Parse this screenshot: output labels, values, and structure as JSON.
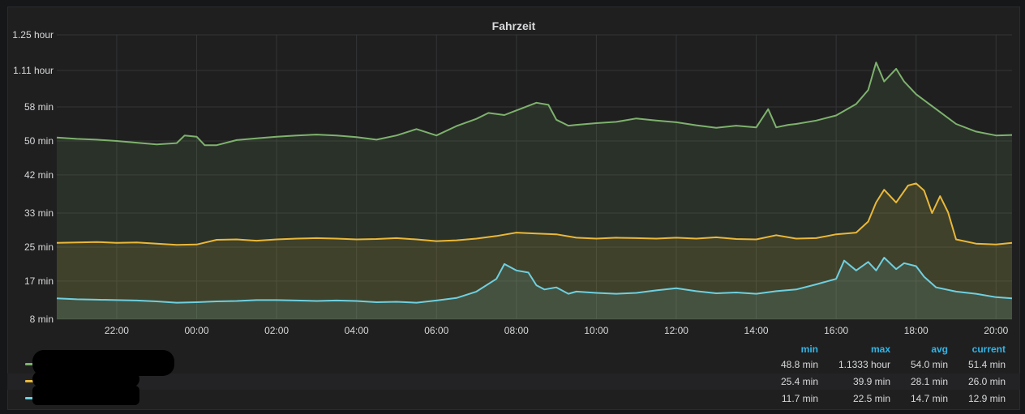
{
  "panel": {
    "title": "Fahrzeit"
  },
  "chart_data": {
    "type": "area",
    "title": "Fahrzeit",
    "y_ticks_minutes": [
      8,
      17,
      25,
      33,
      42,
      50,
      58,
      66.6,
      75
    ],
    "y_tick_labels": [
      "8 min",
      "17 min",
      "25 min",
      "33 min",
      "42 min",
      "50 min",
      "58 min",
      "1.11 hour",
      "1.25 hour"
    ],
    "ylim_minutes": [
      8,
      75
    ],
    "x_tick_labels": [
      "22:00",
      "00:00",
      "02:00",
      "04:00",
      "06:00",
      "08:00",
      "10:00",
      "12:00",
      "14:00",
      "16:00",
      "18:00",
      "20:00"
    ],
    "x_tick_hours": [
      22,
      24,
      26,
      28,
      30,
      32,
      34,
      36,
      38,
      40,
      42,
      44
    ],
    "xlim_hours": [
      20.5,
      44.4
    ],
    "grid": true,
    "legend_position": "bottom",
    "series": [
      {
        "color": "#7eb26d",
        "x_hours": [
          20.5,
          21.0,
          21.5,
          22.0,
          22.5,
          23.0,
          23.5,
          23.7,
          24.0,
          24.2,
          24.5,
          25.0,
          25.5,
          26.0,
          26.5,
          27.0,
          27.5,
          28.0,
          28.5,
          29.0,
          29.5,
          30.0,
          30.5,
          31.0,
          31.3,
          31.7,
          32.0,
          32.5,
          32.8,
          33.0,
          33.3,
          33.5,
          34.0,
          34.5,
          35.0,
          35.5,
          36.0,
          36.5,
          37.0,
          37.5,
          38.0,
          38.3,
          38.5,
          38.8,
          39.0,
          39.5,
          40.0,
          40.5,
          40.8,
          41.0,
          41.2,
          41.5,
          41.7,
          42.0,
          42.5,
          43.0,
          43.5,
          44.0,
          44.4
        ],
        "values_min": [
          50.8,
          50.5,
          50.3,
          50.0,
          49.6,
          49.2,
          49.5,
          51.3,
          51.0,
          49.0,
          49.0,
          50.2,
          50.6,
          51.0,
          51.3,
          51.5,
          51.3,
          50.9,
          50.3,
          51.3,
          52.8,
          51.3,
          53.5,
          55.2,
          56.6,
          56.1,
          57.2,
          59.0,
          58.5,
          55.0,
          53.6,
          53.8,
          54.2,
          54.5,
          55.3,
          54.8,
          54.4,
          53.7,
          53.1,
          53.6,
          53.2,
          57.5,
          53.2,
          53.8,
          54.0,
          54.8,
          56.0,
          58.7,
          62.0,
          68.5,
          64.0,
          67.0,
          64.0,
          61.0,
          57.5,
          54.0,
          52.2,
          51.3,
          51.4
        ]
      },
      {
        "color": "#eab839",
        "x_hours": [
          20.5,
          21.0,
          21.5,
          22.0,
          22.5,
          23.0,
          23.5,
          24.0,
          24.5,
          25.0,
          25.5,
          26.0,
          26.5,
          27.0,
          27.5,
          28.0,
          28.5,
          29.0,
          29.5,
          30.0,
          30.5,
          31.0,
          31.5,
          32.0,
          32.5,
          33.0,
          33.5,
          34.0,
          34.5,
          35.0,
          35.5,
          36.0,
          36.5,
          37.0,
          37.5,
          38.0,
          38.5,
          39.0,
          39.5,
          40.0,
          40.5,
          40.8,
          41.0,
          41.2,
          41.5,
          41.8,
          42.0,
          42.2,
          42.4,
          42.6,
          42.8,
          43.0,
          43.5,
          44.0,
          44.4
        ],
        "values_min": [
          26.0,
          26.1,
          26.2,
          26.0,
          26.1,
          25.8,
          25.5,
          25.6,
          26.7,
          26.8,
          26.5,
          26.8,
          27.0,
          27.1,
          27.0,
          26.8,
          26.9,
          27.1,
          26.8,
          26.4,
          26.6,
          27.0,
          27.6,
          28.4,
          28.2,
          28.0,
          27.2,
          27.0,
          27.2,
          27.1,
          27.0,
          27.2,
          27.0,
          27.3,
          26.9,
          26.8,
          27.8,
          27.0,
          27.1,
          28.0,
          28.4,
          31.0,
          35.5,
          38.5,
          35.5,
          39.5,
          40.0,
          38.3,
          33.0,
          37.0,
          33.2,
          26.8,
          25.8,
          25.6,
          26.0
        ]
      },
      {
        "color": "#6ed0e0",
        "x_hours": [
          20.5,
          21.0,
          21.5,
          22.0,
          22.5,
          23.0,
          23.5,
          24.0,
          24.5,
          25.0,
          25.5,
          26.0,
          26.5,
          27.0,
          27.5,
          28.0,
          28.5,
          29.0,
          29.5,
          30.0,
          30.5,
          31.0,
          31.5,
          31.7,
          32.0,
          32.3,
          32.5,
          32.7,
          33.0,
          33.3,
          33.5,
          34.0,
          34.5,
          35.0,
          35.5,
          36.0,
          36.5,
          37.0,
          37.5,
          38.0,
          38.5,
          39.0,
          39.5,
          40.0,
          40.2,
          40.5,
          40.8,
          41.0,
          41.2,
          41.5,
          41.7,
          42.0,
          42.2,
          42.5,
          43.0,
          43.5,
          44.0,
          44.4
        ],
        "values_min": [
          12.9,
          12.7,
          12.6,
          12.5,
          12.4,
          12.2,
          11.9,
          12.0,
          12.2,
          12.3,
          12.5,
          12.5,
          12.4,
          12.3,
          12.4,
          12.3,
          12.0,
          12.1,
          11.9,
          12.4,
          13.0,
          14.5,
          17.5,
          21.0,
          19.5,
          19.0,
          16.0,
          15.0,
          15.5,
          14.0,
          14.5,
          14.2,
          14.0,
          14.2,
          14.8,
          15.3,
          14.6,
          14.1,
          14.3,
          14.0,
          14.6,
          15.0,
          16.2,
          17.5,
          21.8,
          19.5,
          21.5,
          19.5,
          22.5,
          19.8,
          21.2,
          20.5,
          18.0,
          15.5,
          14.5,
          14.0,
          13.2,
          12.9
        ]
      }
    ]
  },
  "legend": {
    "headers": {
      "min": "min",
      "max": "max",
      "avg": "avg",
      "current": "current"
    },
    "rows": [
      {
        "color": "#7eb26d",
        "min": "48.8 min",
        "max": "1.1333 hour",
        "avg": "54.0 min",
        "current": "51.4 min"
      },
      {
        "color": "#eab839",
        "min": "25.4 min",
        "max": "39.9 min",
        "avg": "28.1 min",
        "current": "26.0 min"
      },
      {
        "color": "#6ed0e0",
        "min": "11.7 min",
        "max": "22.5 min",
        "avg": "14.7 min",
        "current": "12.9 min"
      }
    ]
  }
}
